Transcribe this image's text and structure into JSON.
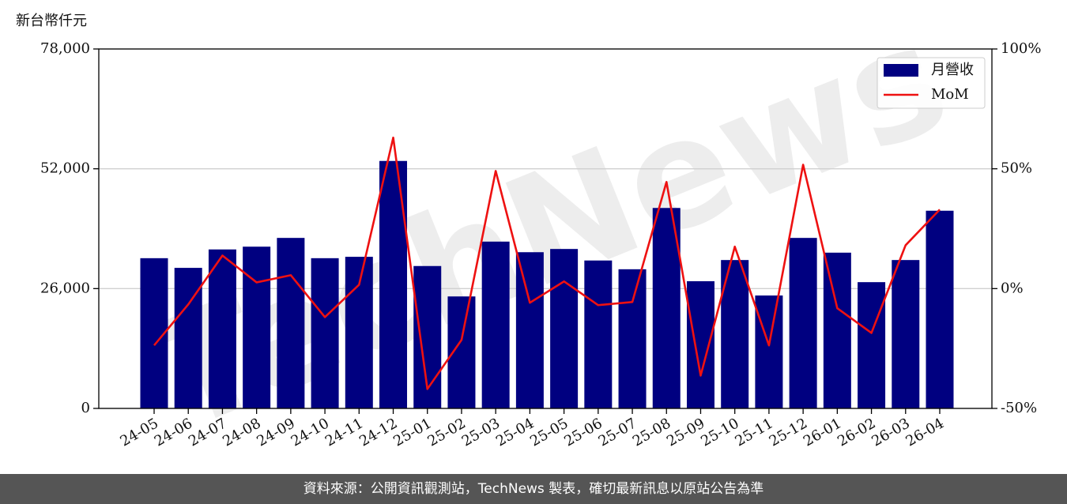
{
  "chart_data": {
    "type": "bar_line",
    "y_axis_label": "新台幣仟元",
    "watermark": "TechNews",
    "source": "資料來源：公開資訊觀測站，TechNews 製表，確切最新訊息以原站公告為準",
    "categories": [
      "24-05",
      "24-06",
      "24-07",
      "24-08",
      "24-09",
      "24-10",
      "24-11",
      "24-12",
      "25-01",
      "25-02",
      "25-03",
      "25-04",
      "25-05",
      "25-06",
      "25-07",
      "25-08",
      "25-09",
      "25-10",
      "25-11",
      "25-12",
      "26-01",
      "26-02",
      "26-03",
      "26-04"
    ],
    "series": [
      {
        "name": "月營收",
        "type": "bar",
        "color": "#000080",
        "axis": "y",
        "values": [
          32600,
          30500,
          34500,
          35100,
          37000,
          32600,
          32900,
          53700,
          30900,
          24300,
          36200,
          33900,
          34600,
          32100,
          30200,
          43500,
          27600,
          32200,
          24500,
          37000,
          33800,
          27400,
          32200,
          42900
        ]
      },
      {
        "name": "MoM",
        "type": "line",
        "color": "#ee1111",
        "axis": "y2",
        "values": [
          -23.7,
          -6.6,
          13.8,
          2.6,
          5.6,
          -11.9,
          1.6,
          63.0,
          -41.9,
          -21.4,
          49.1,
          -5.9,
          3.0,
          -6.9,
          -5.6,
          44.5,
          -36.3,
          17.5,
          -23.7,
          51.7,
          -8.2,
          -18.5,
          18.1,
          33.0
        ]
      }
    ],
    "ylim": [
      0,
      78000
    ],
    "yticks": [
      0,
      {
        "value": 26000,
        "label": "26,000"
      },
      {
        "value": 52000,
        "label": "52,000"
      },
      {
        "value": 78000,
        "label": "78,000"
      }
    ],
    "y2lim": [
      -50,
      100
    ],
    "y2ticks": [
      {
        "value": -50,
        "label": "-50%"
      },
      {
        "value": 0,
        "label": "0%"
      },
      {
        "value": 50,
        "label": "50%"
      },
      {
        "value": 100,
        "label": "100%"
      }
    ],
    "grid": true,
    "legend": "upper right"
  }
}
